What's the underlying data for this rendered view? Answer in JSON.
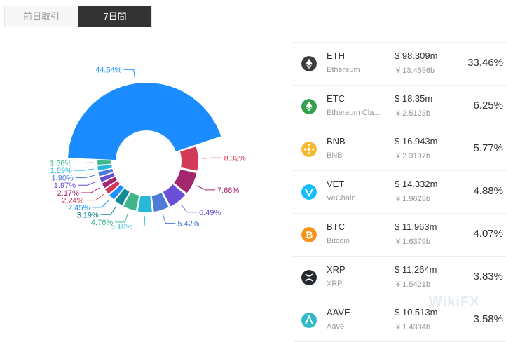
{
  "tabs": [
    {
      "label": "前日取引",
      "active": false
    },
    {
      "label": "7日間",
      "active": true
    }
  ],
  "chart_data": {
    "type": "pie",
    "donut": true,
    "slices": [
      {
        "label": "44.54%",
        "value": 44.54,
        "color": "#1a8cff"
      },
      {
        "label": "8.32%",
        "value": 8.32,
        "color": "#d33a58"
      },
      {
        "label": "7.68%",
        "value": 7.68,
        "color": "#a3276f"
      },
      {
        "label": "6.49%",
        "value": 6.49,
        "color": "#6a4fd6"
      },
      {
        "label": "5.42%",
        "value": 5.42,
        "color": "#4e7ad8"
      },
      {
        "label": "5.10%",
        "value": 5.1,
        "color": "#26b8d9"
      },
      {
        "label": "4.76%",
        "value": 4.76,
        "color": "#3fb68b"
      },
      {
        "label": "3.19%",
        "value": 3.19,
        "color": "#128a96"
      },
      {
        "label": "2.45%",
        "value": 2.45,
        "color": "#1e90ff"
      },
      {
        "label": "2.24%",
        "value": 2.24,
        "color": "#d33a58"
      },
      {
        "label": "2.17%",
        "value": 2.17,
        "color": "#a3276f"
      },
      {
        "label": "1.97%",
        "value": 1.97,
        "color": "#6a4fd6"
      },
      {
        "label": "1.90%",
        "value": 1.9,
        "color": "#4e7ad8"
      },
      {
        "label": "1.89%",
        "value": 1.89,
        "color": "#26b8d9"
      },
      {
        "label": "1.88%",
        "value": 1.88,
        "color": "#3fb68b"
      }
    ]
  },
  "coins": [
    {
      "symbol": "ETH",
      "name": "Ethereum",
      "volume_usd": "$ 98.309m",
      "volume_cny": "¥ 13.4596b",
      "percent": "33.46%",
      "icon": "ethereum-icon",
      "color": "#3c3c3d"
    },
    {
      "symbol": "ETC",
      "name": "Ethereum Cla...",
      "volume_usd": "$ 18.35m",
      "volume_cny": "¥ 2.5123b",
      "percent": "6.25%",
      "icon": "ethereum-classic-icon",
      "color": "#33a04c"
    },
    {
      "symbol": "BNB",
      "name": "BNB",
      "volume_usd": "$ 16.943m",
      "volume_cny": "¥ 2.3197b",
      "percent": "5.77%",
      "icon": "bnb-icon",
      "color": "#f3ba2f"
    },
    {
      "symbol": "VET",
      "name": "VeChain",
      "volume_usd": "$ 14.332m",
      "volume_cny": "¥ 1.9623b",
      "percent": "4.88%",
      "icon": "vechain-icon",
      "color": "#15bdff"
    },
    {
      "symbol": "BTC",
      "name": "Bitcoin",
      "volume_usd": "$ 11.963m",
      "volume_cny": "¥ 1.6379b",
      "percent": "4.07%",
      "icon": "bitcoin-icon",
      "color": "#f7931a"
    },
    {
      "symbol": "XRP",
      "name": "XRP",
      "volume_usd": "$ 11.264m",
      "volume_cny": "¥ 1.5421b",
      "percent": "3.83%",
      "icon": "xrp-icon",
      "color": "#23292f"
    },
    {
      "symbol": "AAVE",
      "name": "Aave",
      "volume_usd": "$ 10.513m",
      "volume_cny": "¥ 1.4394b",
      "percent": "3.58%",
      "icon": "aave-icon",
      "color": "#2ebac6"
    }
  ],
  "watermark": "WikiFX"
}
